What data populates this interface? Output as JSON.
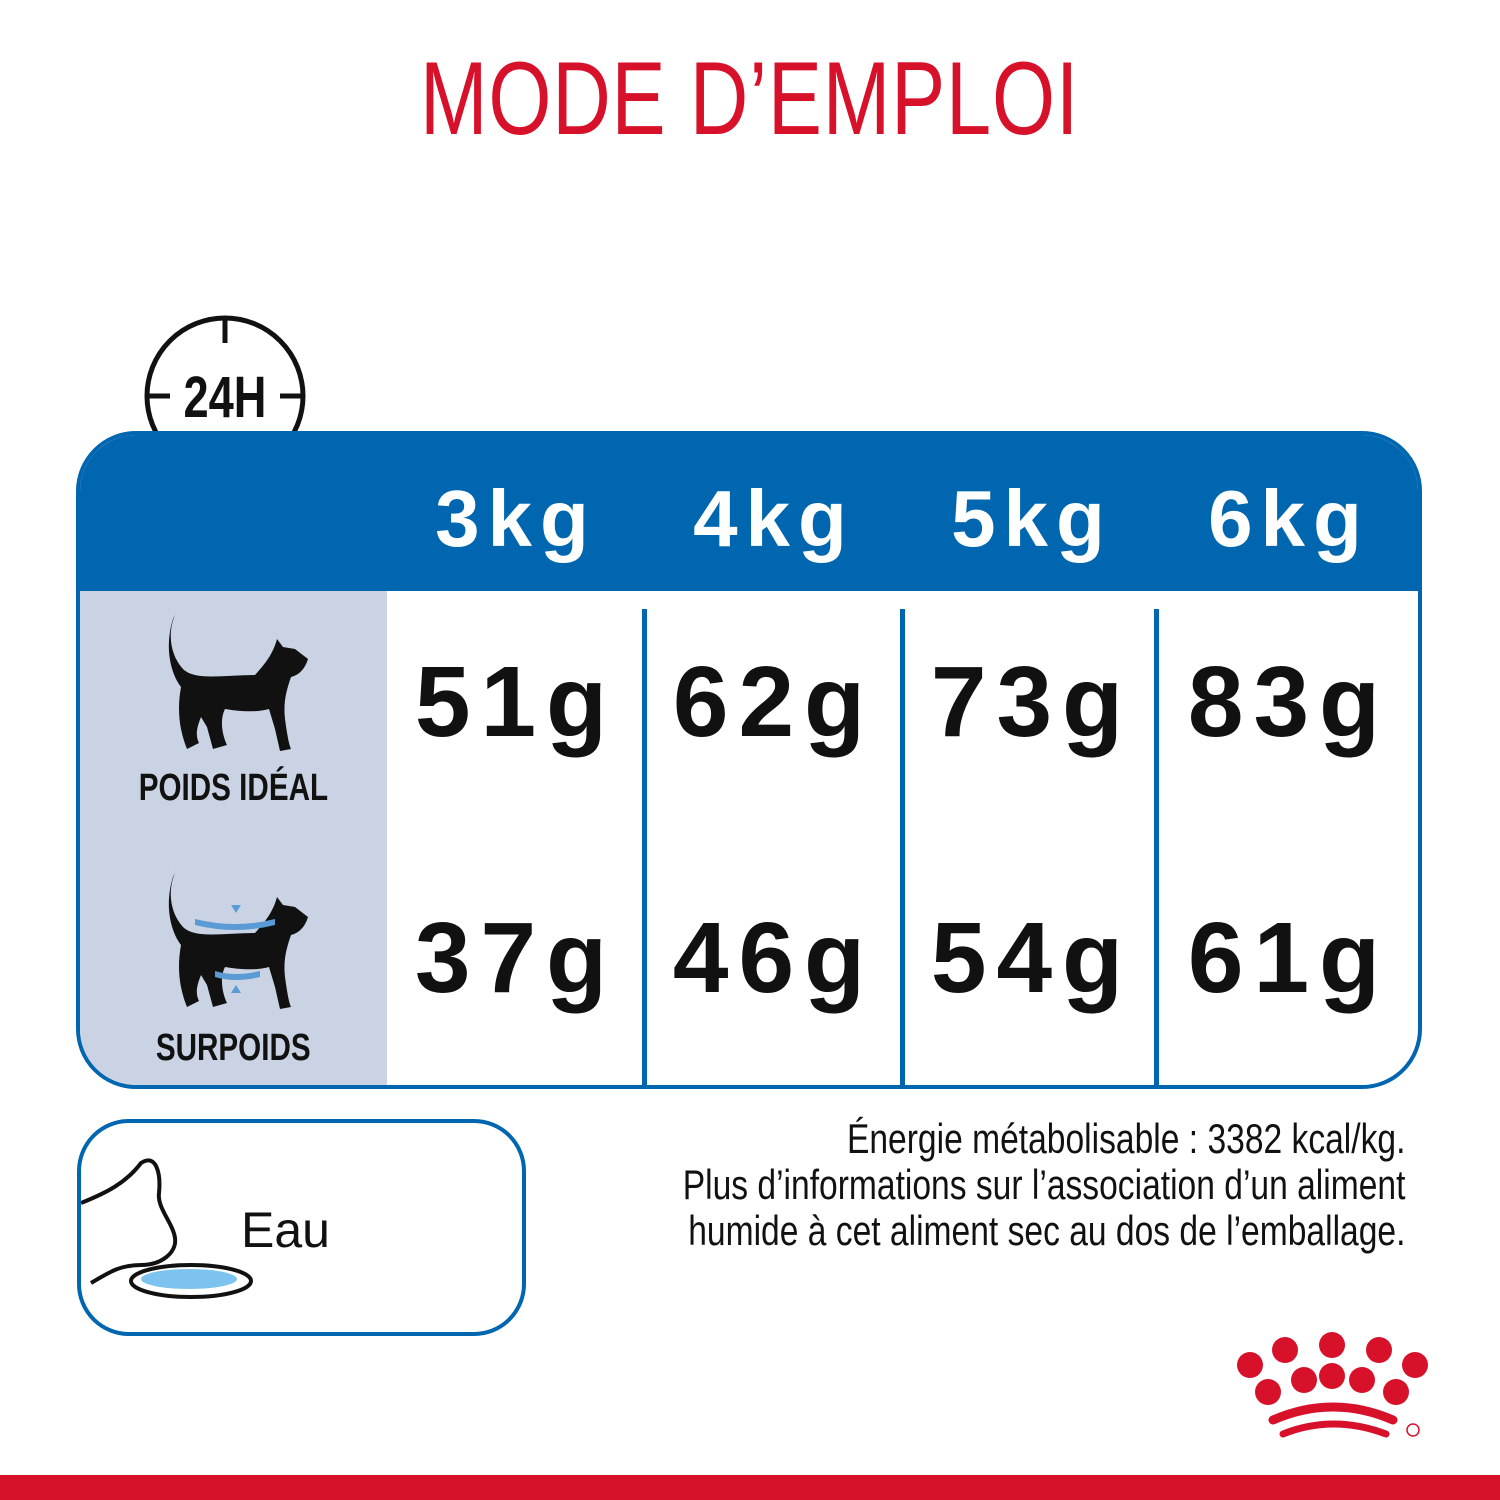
{
  "title": "MODE D’EMPLOI",
  "clock_badge": "24H",
  "weights": [
    "3kg",
    "4kg",
    "5kg",
    "6kg"
  ],
  "rows": [
    {
      "label": "POIDS IDÉAL",
      "icon": "cat-ideal-weight-icon",
      "values": [
        "51g",
        "62g",
        "73g",
        "83g"
      ]
    },
    {
      "label": "SURPOIDS",
      "icon": "cat-overweight-icon",
      "values": [
        "37g",
        "46g",
        "54g",
        "61g"
      ]
    }
  ],
  "water": {
    "label": "Eau",
    "icon": "cat-drinking-water-icon"
  },
  "notes": [
    "Énergie métabolisable : 3382 kcal/kg.",
    "Plus d’informations sur l’association d’un aliment",
    "humide à cet aliment sec au dos de l’emballage."
  ],
  "colors": {
    "brand_red": "#d8112b",
    "table_blue": "#0066b0",
    "side_panel": "#c9d3e3",
    "water": "#7cc3ef"
  }
}
